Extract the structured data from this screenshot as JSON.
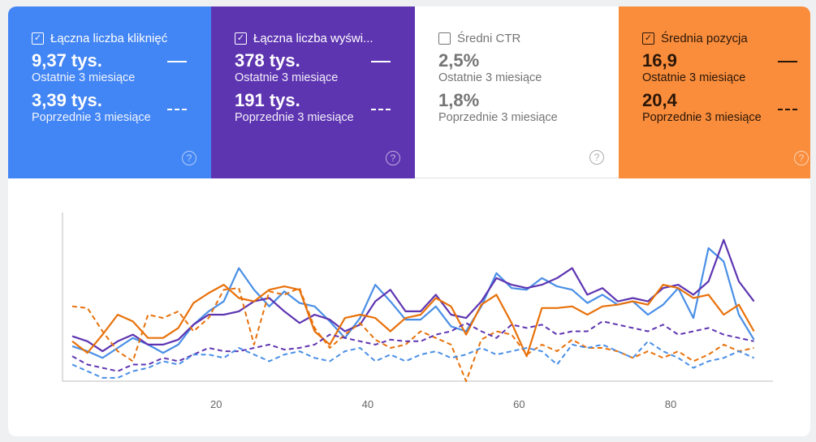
{
  "cards": [
    {
      "label": "Łączna liczba kliknięć",
      "checked": true,
      "current": "9,37 tys.",
      "current_label": "Ostatnie 3 miesiące",
      "previous": "3,39 tys.",
      "previous_label": "Poprzednie 3 miesiące",
      "color": "#4285f4"
    },
    {
      "label": "Łączna liczba wyświ...",
      "checked": true,
      "current": "378 tys.",
      "current_label": "Ostatnie 3 miesiące",
      "previous": "191 tys.",
      "previous_label": "Poprzednie 3 miesiące",
      "color": "#5e35b1"
    },
    {
      "label": "Średni CTR",
      "checked": false,
      "current": "2,5%",
      "current_label": "Ostatnie 3 miesiące",
      "previous": "1,8%",
      "previous_label": "Poprzednie 3 miesiące",
      "color": "#ffffff"
    },
    {
      "label": "Średnia pozycja",
      "checked": true,
      "current": "16,9",
      "current_label": "Ostatnie 3 miesiące",
      "previous": "20,4",
      "previous_label": "Poprzednie 3 miesiące",
      "color": "#f98d3c"
    }
  ],
  "icons": {
    "checkbox_checked": "checkbox-checked-icon",
    "checkbox_unchecked": "checkbox-icon",
    "help": "help-circle-icon",
    "help_glyph": "?",
    "check_glyph": "✓"
  },
  "chart_data": {
    "type": "line",
    "xlim": [
      1,
      92
    ],
    "ylim": [
      0,
      100
    ],
    "x_ticks": [
      "20",
      "40",
      "60",
      "80"
    ],
    "x_tick_values": [
      20,
      40,
      60,
      80
    ],
    "y_ticks_shown": false,
    "grid": false,
    "x": [
      1,
      3,
      5,
      7,
      9,
      11,
      13,
      15,
      17,
      19,
      21,
      23,
      25,
      27,
      29,
      31,
      33,
      35,
      37,
      39,
      41,
      43,
      45,
      47,
      49,
      51,
      53,
      55,
      57,
      59,
      61,
      63,
      65,
      67,
      69,
      71,
      73,
      75,
      77,
      79,
      81,
      83,
      85,
      87,
      89,
      91
    ],
    "series": [
      {
        "metric": "clicks-current",
        "color": "#4a8fe6",
        "dashed": false,
        "values": [
          21,
          18,
          14,
          20,
          26,
          22,
          17,
          22,
          34,
          42,
          48,
          68,
          55,
          45,
          54,
          47,
          45,
          36,
          26,
          38,
          58,
          48,
          37,
          37,
          45,
          33,
          30,
          45,
          65,
          56,
          55,
          62,
          57,
          55,
          47,
          52,
          46,
          48,
          40,
          46,
          56,
          38,
          80,
          72,
          40,
          25
        ]
      },
      {
        "metric": "impressions-current",
        "color": "#5e35b1",
        "dashed": false,
        "values": [
          27,
          24,
          18,
          24,
          28,
          22,
          22,
          25,
          34,
          40,
          40,
          42,
          48,
          50,
          42,
          35,
          40,
          37,
          30,
          34,
          48,
          55,
          42,
          42,
          52,
          40,
          38,
          48,
          62,
          58,
          56,
          58,
          62,
          68,
          52,
          56,
          48,
          50,
          48,
          56,
          58,
          52,
          60,
          85,
          60,
          48
        ]
      },
      {
        "metric": "position-current",
        "color": "#e8710a",
        "dashed": false,
        "values": [
          24,
          17,
          28,
          40,
          36,
          26,
          26,
          32,
          47,
          53,
          58,
          50,
          48,
          55,
          57,
          55,
          30,
          22,
          38,
          40,
          38,
          30,
          38,
          40,
          50,
          45,
          28,
          46,
          52,
          35,
          15,
          44,
          44,
          45,
          40,
          45,
          46,
          48,
          46,
          58,
          56,
          50,
          52,
          40,
          46,
          30
        ]
      },
      {
        "metric": "position-previous",
        "color": "#e8710a",
        "dashed": true,
        "values": [
          45,
          44,
          30,
          18,
          12,
          40,
          38,
          42,
          30,
          38,
          55,
          56,
          22,
          54,
          52,
          56,
          32,
          20,
          28,
          35,
          25,
          20,
          22,
          30,
          26,
          22,
          0,
          25,
          30,
          28,
          16,
          22,
          18,
          25,
          20,
          20,
          18,
          14,
          18,
          14,
          18,
          12,
          16,
          22,
          18,
          20
        ]
      },
      {
        "metric": "impressions-previous",
        "color": "#5e35b1",
        "dashed": true,
        "values": [
          15,
          10,
          8,
          6,
          10,
          10,
          14,
          12,
          16,
          20,
          18,
          18,
          20,
          22,
          19,
          20,
          22,
          28,
          26,
          24,
          22,
          25,
          24,
          24,
          28,
          30,
          35,
          30,
          26,
          34,
          32,
          34,
          28,
          30,
          30,
          36,
          34,
          32,
          30,
          34,
          28,
          30,
          32,
          28,
          26,
          24
        ]
      },
      {
        "metric": "clicks-previous",
        "color": "#4a8fe6",
        "dashed": true,
        "values": [
          10,
          6,
          2,
          2,
          6,
          8,
          12,
          10,
          16,
          16,
          14,
          20,
          16,
          12,
          16,
          18,
          14,
          12,
          18,
          20,
          12,
          16,
          12,
          16,
          18,
          14,
          16,
          20,
          16,
          18,
          20,
          18,
          10,
          22,
          20,
          22,
          18,
          14,
          24,
          18,
          14,
          8,
          12,
          14,
          18,
          14
        ]
      }
    ]
  }
}
